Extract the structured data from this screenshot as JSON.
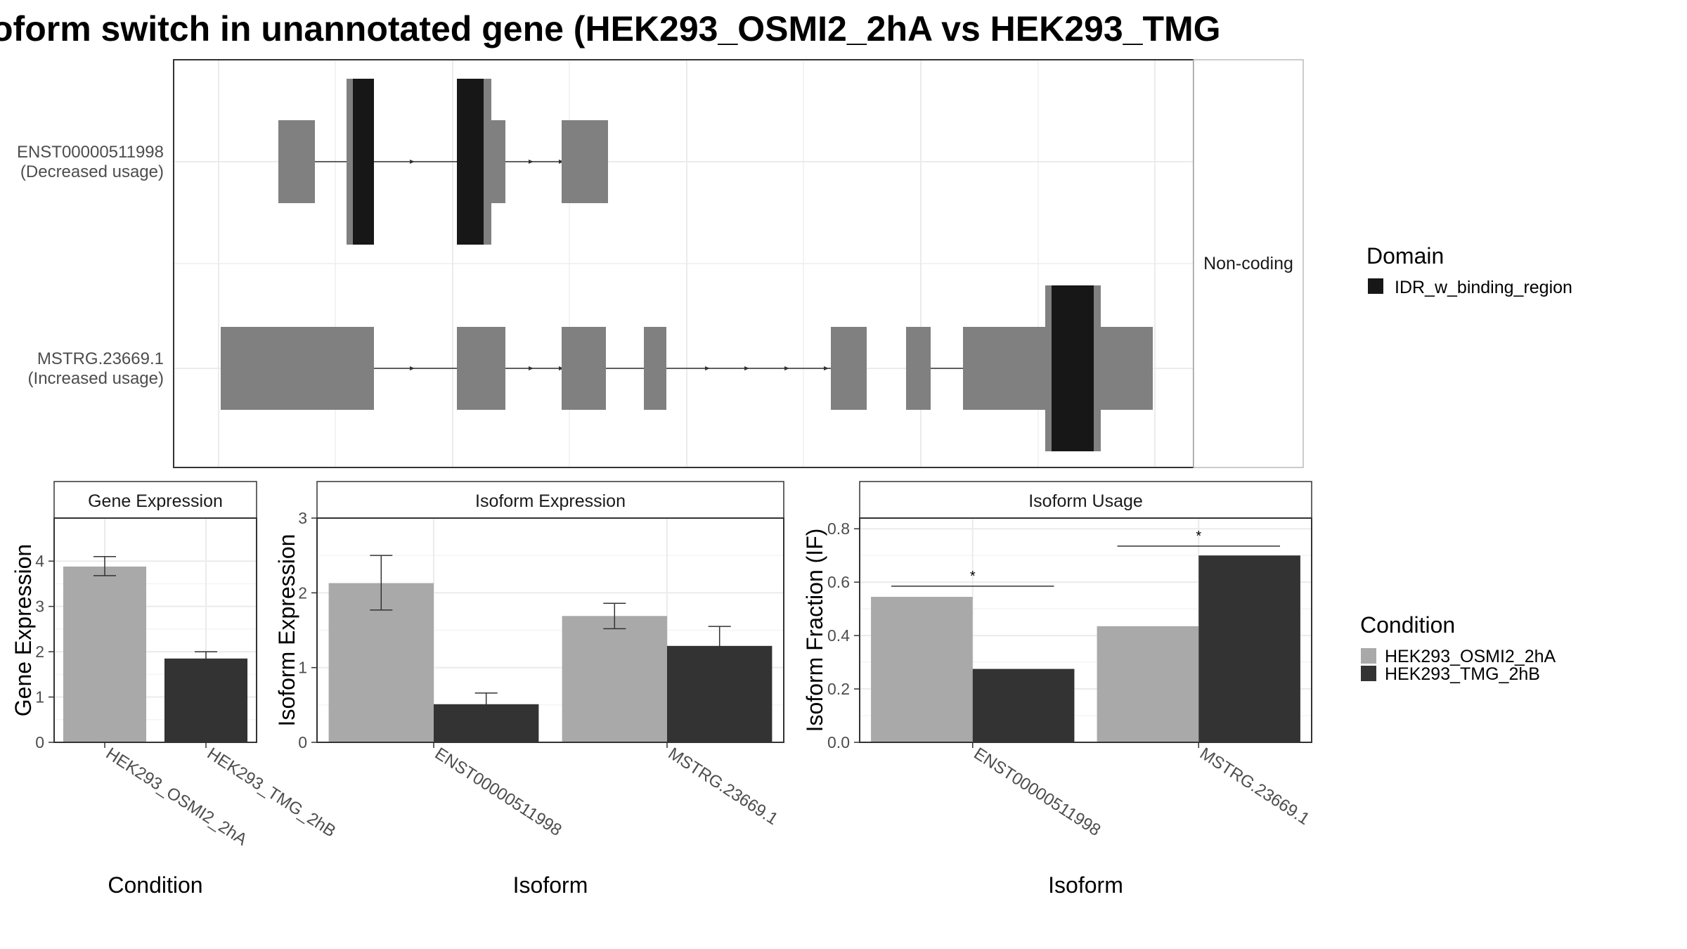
{
  "title": "oform switch in unannotated gene (HEK293_OSMI2_2hA vs HEK293_TMG",
  "structure": {
    "facet_label": "Non-coding",
    "transcripts": [
      {
        "label1": "ENST00000511998",
        "label2": "(Decreased usage)"
      },
      {
        "label1": "MSTRG.23669.1",
        "label2": "(Increased usage)"
      }
    ]
  },
  "domain_legend": {
    "title": "Domain",
    "items": [
      "IDR_w_binding_region"
    ]
  },
  "condition_legend": {
    "title": "Condition",
    "items": [
      {
        "label": "HEK293_OSMI2_2hA",
        "color": "#a9a9a9"
      },
      {
        "label": "HEK293_TMG_2hB",
        "color": "#333333"
      }
    ]
  },
  "colors": {
    "exon": "#808080",
    "domain": "#171717",
    "cond_a": "#a9a9a9",
    "cond_b": "#333333"
  },
  "chart_data": [
    {
      "type": "bar",
      "title": "Gene Expression",
      "xlabel": "Condition",
      "ylabel": "Gene Expression",
      "categories": [
        "HEK293_OSMI2_2hA",
        "HEK293_TMG_2hB"
      ],
      "values": [
        3.88,
        1.85
      ],
      "errors": [
        [
          3.68,
          4.1
        ],
        [
          1.72,
          2.0
        ]
      ],
      "ylim": [
        0,
        4.95
      ],
      "yticks": [
        0,
        1,
        2,
        3,
        4
      ]
    },
    {
      "type": "bar",
      "title": "Isoform Expression",
      "xlabel": "Isoform",
      "ylabel": "Isoform Expression",
      "categories": [
        "ENST00000511998",
        "MSTRG.23669.1"
      ],
      "series": [
        {
          "name": "HEK293_OSMI2_2hA",
          "values": [
            2.13,
            1.69
          ],
          "errors": [
            [
              1.77,
              2.5
            ],
            [
              1.52,
              1.86
            ]
          ]
        },
        {
          "name": "HEK293_TMG_2hB",
          "values": [
            0.51,
            1.29
          ],
          "errors": [
            [
              0.36,
              0.66
            ],
            [
              1.04,
              1.55
            ]
          ]
        }
      ],
      "ylim": [
        0,
        3.0
      ],
      "yticks": [
        0,
        1,
        2,
        3
      ]
    },
    {
      "type": "bar",
      "title": "Isoform Usage",
      "xlabel": "Isoform",
      "ylabel": "Isoform Fraction (IF)",
      "categories": [
        "ENST00000511998",
        "MSTRG.23669.1"
      ],
      "series": [
        {
          "name": "HEK293_OSMI2_2hA",
          "values": [
            0.545,
            0.435
          ]
        },
        {
          "name": "HEK293_TMG_2hB",
          "values": [
            0.275,
            0.7
          ]
        }
      ],
      "significance": [
        {
          "category": "ENST00000511998",
          "label": "*",
          "y": 0.585
        },
        {
          "category": "MSTRG.23669.1",
          "label": "*",
          "y": 0.735
        }
      ],
      "ylim": [
        0,
        0.84
      ],
      "yticks": [
        0.0,
        0.2,
        0.4,
        0.6,
        0.8
      ]
    }
  ]
}
